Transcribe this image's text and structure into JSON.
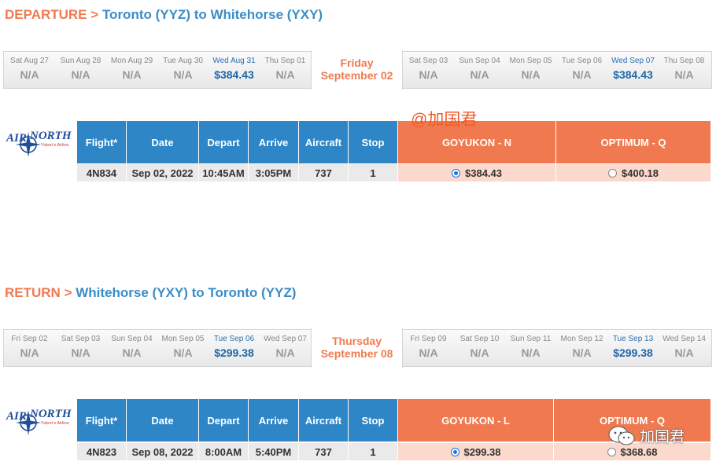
{
  "departure": {
    "kw": "DEPARTURE",
    "sep": ">",
    "route": "Toronto (YYZ) to Whitehorse (YXY)",
    "dates_before": [
      {
        "label": "Sat Aug 27",
        "price": "N/A",
        "avail": false
      },
      {
        "label": "Sun Aug 28",
        "price": "N/A",
        "avail": false
      },
      {
        "label": "Mon Aug 29",
        "price": "N/A",
        "avail": false
      },
      {
        "label": "Tue Aug 30",
        "price": "N/A",
        "avail": false
      },
      {
        "label": "Wed Aug 31",
        "price": "$384.43",
        "avail": true
      },
      {
        "label": "Thu Sep 01",
        "price": "N/A",
        "avail": false
      }
    ],
    "selected_day": "Friday",
    "selected_date": "September 02",
    "dates_after": [
      {
        "label": "Sat Sep 03",
        "price": "N/A",
        "avail": false
      },
      {
        "label": "Sun Sep 04",
        "price": "N/A",
        "avail": false
      },
      {
        "label": "Mon Sep 05",
        "price": "N/A",
        "avail": false
      },
      {
        "label": "Tue Sep 06",
        "price": "N/A",
        "avail": false
      },
      {
        "label": "Wed Sep 07",
        "price": "$384.43",
        "avail": true
      },
      {
        "label": "Thu Sep 08",
        "price": "N/A",
        "avail": false
      }
    ],
    "headers": {
      "flight": "Flight*",
      "date": "Date",
      "depart": "Depart",
      "arrive": "Arrive",
      "aircraft": "Aircraft",
      "stop": "Stop",
      "fare1": "GOYUKON - N",
      "fare2": "OPTIMUM - Q"
    },
    "row": {
      "flight": "4N834",
      "date": "Sep 02, 2022",
      "depart": "10:45AM",
      "arrive": "3:05PM",
      "aircraft": "737",
      "stop": "1",
      "fare1": "$384.43",
      "fare2": "$400.18"
    }
  },
  "return": {
    "kw": "RETURN",
    "sep": ">",
    "route": "Whitehorse (YXY) to Toronto (YYZ)",
    "dates_before": [
      {
        "label": "Fri Sep 02",
        "price": "N/A",
        "avail": false
      },
      {
        "label": "Sat Sep 03",
        "price": "N/A",
        "avail": false
      },
      {
        "label": "Sun Sep 04",
        "price": "N/A",
        "avail": false
      },
      {
        "label": "Mon Sep 05",
        "price": "N/A",
        "avail": false
      },
      {
        "label": "Tue Sep 06",
        "price": "$299.38",
        "avail": true
      },
      {
        "label": "Wed Sep 07",
        "price": "N/A",
        "avail": false
      }
    ],
    "selected_day": "Thursday",
    "selected_date": "September 08",
    "dates_after": [
      {
        "label": "Fri Sep 09",
        "price": "N/A",
        "avail": false
      },
      {
        "label": "Sat Sep 10",
        "price": "N/A",
        "avail": false
      },
      {
        "label": "Sun Sep 11",
        "price": "N/A",
        "avail": false
      },
      {
        "label": "Mon Sep 12",
        "price": "N/A",
        "avail": false
      },
      {
        "label": "Tue Sep 13",
        "price": "$299.38",
        "avail": true
      },
      {
        "label": "Wed Sep 14",
        "price": "N/A",
        "avail": false
      }
    ],
    "headers": {
      "flight": "Flight*",
      "date": "Date",
      "depart": "Depart",
      "arrive": "Arrive",
      "aircraft": "Aircraft",
      "stop": "Stop",
      "fare1": "GOYUKON - L",
      "fare2": "OPTIMUM - Q"
    },
    "row": {
      "flight": "4N823",
      "date": "Sep 08, 2022",
      "depart": "8:00AM",
      "arrive": "5:40PM",
      "aircraft": "737",
      "stop": "1",
      "fare1": "$299.38",
      "fare2": "$368.68"
    }
  },
  "logo": {
    "air": "AIR",
    "north": "NORTH",
    "tagline": "Yukon's Airline"
  },
  "watermark_top": "@加国君",
  "watermark_bottom": "加国君",
  "colors": {
    "brand_blue": "#2e86c6",
    "accent_orange": "#f0794f",
    "fare_bg": "#fbd9cc"
  }
}
